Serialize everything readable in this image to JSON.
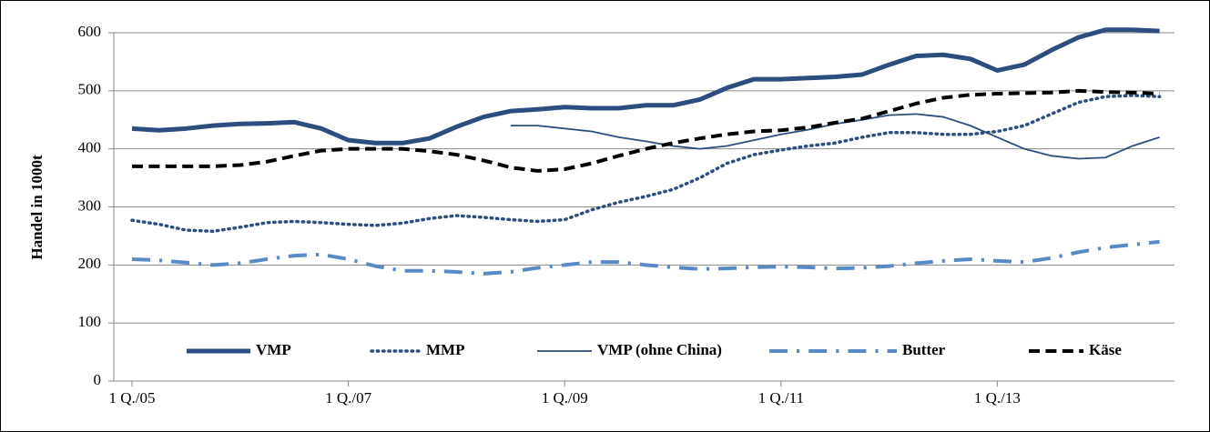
{
  "chart_data": {
    "type": "line",
    "y_label": "Handel in 1000t",
    "categories": [
      "1 Q./05",
      null,
      null,
      null,
      null,
      null,
      null,
      null,
      "1 Q./07",
      null,
      null,
      null,
      null,
      null,
      null,
      null,
      "1 Q./09",
      null,
      null,
      null,
      null,
      null,
      null,
      null,
      "1 Q./11",
      null,
      null,
      null,
      null,
      null,
      null,
      null,
      "1 Q./13",
      null,
      null,
      null,
      null,
      null,
      null
    ],
    "ylim": [
      0,
      600
    ],
    "yticks": [
      0,
      100,
      200,
      300,
      400,
      500,
      600
    ],
    "grid": true,
    "legend": "bottom",
    "series": [
      {
        "name": "VMP",
        "color": "#2c4d7e",
        "style": "solid",
        "width": 5,
        "values": [
          435,
          432,
          435,
          440,
          443,
          444,
          446,
          435,
          415,
          410,
          410,
          418,
          438,
          455,
          465,
          468,
          472,
          470,
          470,
          475,
          475,
          485,
          505,
          520,
          520,
          522,
          524,
          528,
          545,
          560,
          562,
          555,
          535,
          545,
          570,
          592,
          605,
          605,
          603
        ]
      },
      {
        "name": "MMP",
        "color": "#2c4d7e",
        "style": "dotted",
        "width": 3.5,
        "values": [
          277,
          270,
          260,
          258,
          265,
          273,
          275,
          273,
          270,
          268,
          272,
          280,
          285,
          282,
          278,
          275,
          278,
          295,
          308,
          318,
          330,
          350,
          375,
          390,
          398,
          405,
          410,
          420,
          428,
          428,
          425,
          425,
          430,
          440,
          460,
          480,
          490,
          492,
          490
        ]
      },
      {
        "name": "VMP (ohne China)",
        "color": "#2c4d7e",
        "style": "solid",
        "width": 1.8,
        "values": [
          null,
          null,
          null,
          null,
          null,
          null,
          null,
          null,
          null,
          null,
          null,
          null,
          null,
          null,
          440,
          440,
          435,
          430,
          420,
          413,
          405,
          400,
          405,
          415,
          425,
          433,
          443,
          450,
          458,
          460,
          455,
          440,
          420,
          400,
          388,
          383,
          385,
          405,
          420
        ]
      },
      {
        "name": "Butter",
        "color": "#5a8ac6",
        "style": "dashdot",
        "width": 4,
        "values": [
          210,
          208,
          204,
          200,
          203,
          210,
          216,
          218,
          210,
          198,
          190,
          190,
          188,
          185,
          188,
          195,
          200,
          205,
          205,
          200,
          196,
          193,
          194,
          196,
          197,
          196,
          194,
          195,
          198,
          203,
          207,
          210,
          207,
          205,
          212,
          222,
          230,
          235,
          240
        ]
      },
      {
        "name": "Käse",
        "color": "#000000",
        "style": "dashed",
        "width": 4,
        "values": [
          370,
          370,
          370,
          370,
          372,
          378,
          388,
          397,
          400,
          400,
          400,
          396,
          390,
          380,
          368,
          362,
          365,
          375,
          388,
          400,
          410,
          418,
          425,
          430,
          432,
          437,
          445,
          452,
          465,
          478,
          488,
          493,
          495,
          496,
          497,
          500,
          498,
          497,
          495
        ]
      }
    ]
  }
}
